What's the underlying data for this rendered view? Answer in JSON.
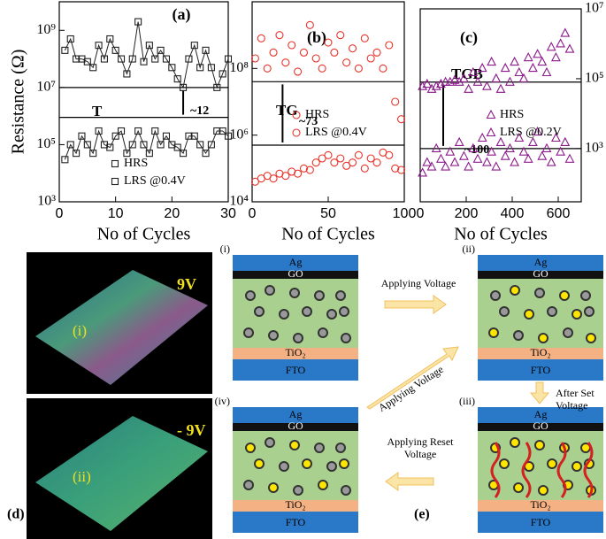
{
  "chart_data": [
    {
      "type": "scatter",
      "label": "(a)",
      "y_label": "Resistance (Ω)",
      "x_label": "No of Cycles",
      "log_y": true,
      "xlim": [
        0,
        30
      ],
      "xticks": [
        0,
        10,
        20,
        30
      ],
      "ylim": [
        1000,
        10000000000
      ],
      "yticks": [
        {
          "value": 1000,
          "label": "10³"
        },
        {
          "value": 100000,
          "label": "10⁵"
        },
        {
          "value": 10000000,
          "label": "10⁷"
        },
        {
          "value": 1000000000,
          "label": "10⁹"
        }
      ],
      "reference_lines": [
        10000000,
        900000
      ],
      "annotations": [
        "T",
        "~12"
      ],
      "x": [
        1,
        2,
        3,
        4,
        5,
        6,
        7,
        8,
        9,
        10,
        11,
        12,
        13,
        14,
        15,
        16,
        17,
        18,
        19,
        20,
        21,
        22,
        23,
        24,
        25,
        26,
        27,
        28,
        29,
        30
      ],
      "series": [
        {
          "name": "HRS",
          "color": "#222222",
          "marker": "square",
          "values": [
            200000000,
            500000000,
            100000000,
            100000000,
            80000000,
            50000000,
            300000000,
            100000000,
            500000000,
            200000000,
            100000000,
            30000000,
            100000000,
            2000000000,
            80000000,
            300000000,
            100000000,
            200000000,
            100000000,
            50000000,
            20000000,
            10000000,
            100000000,
            300000000,
            50000000,
            200000000,
            50000000,
            10000000,
            30000000,
            100000000
          ]
        },
        {
          "name": "LRS @0.4V",
          "color": "#222222",
          "marker": "square",
          "values": [
            30000,
            100000,
            50000,
            200000,
            100000,
            50000,
            300000,
            100000,
            80000,
            200000,
            300000,
            50000,
            100000,
            300000,
            100000,
            50000,
            300000,
            100000,
            200000,
            100000,
            80000,
            50000,
            200000,
            200000,
            100000,
            50000,
            100000,
            300000,
            300000,
            200000
          ]
        }
      ]
    },
    {
      "type": "scatter",
      "label": "(b)",
      "x_label": "No of Cycles",
      "log_y": true,
      "xlim": [
        0,
        100
      ],
      "xticks": [
        0,
        50,
        100
      ],
      "ylim": [
        10000,
        10000000000
      ],
      "yticks": [
        {
          "value": 10000,
          "label": "10⁴"
        },
        {
          "value": 1000000,
          "label": "10⁶"
        },
        {
          "value": 100000000,
          "label": "10⁸"
        }
      ],
      "reference_lines": [
        40000000,
        500000
      ],
      "annotations": [
        "TG",
        "~73"
      ],
      "x": [
        2,
        6,
        10,
        14,
        18,
        22,
        26,
        30,
        34,
        38,
        42,
        46,
        50,
        54,
        58,
        62,
        66,
        70,
        74,
        78,
        82,
        86,
        90,
        94,
        98
      ],
      "series": [
        {
          "name": "HRS",
          "color": "#e8332a",
          "marker": "circle",
          "values": [
            200000000,
            800000000,
            100000000,
            300000000,
            1000000000,
            150000000,
            500000000,
            80000000,
            300000000,
            2000000000,
            200000000,
            100000000,
            600000000,
            300000000,
            1000000000,
            150000000,
            400000000,
            100000000,
            800000000,
            200000000,
            300000000,
            100000000,
            500000000,
            10000000,
            3000000
          ]
        },
        {
          "name": "LRS @0.4V",
          "color": "#e8332a",
          "marker": "circle",
          "values": [
            40000,
            50000,
            60000,
            50000,
            70000,
            60000,
            80000,
            70000,
            100000,
            90000,
            150000,
            200000,
            250000,
            150000,
            200000,
            120000,
            150000,
            250000,
            100000,
            200000,
            150000,
            300000,
            250000,
            100000,
            90000
          ]
        }
      ]
    },
    {
      "type": "scatter",
      "label": "(c)",
      "x_label": "No of Cycles",
      "log_y": true,
      "xlim": [
        0,
        700
      ],
      "xticks": [
        0,
        200,
        400,
        600
      ],
      "ylim": [
        30,
        10000000
      ],
      "yticks": [
        {
          "value": 1000,
          "label": "10³"
        },
        {
          "value": 100000,
          "label": "10⁵"
        },
        {
          "value": 10000000,
          "label": "10⁷"
        }
      ],
      "reference_lines": [
        80000,
        1000
      ],
      "annotations": [
        "TGB",
        "~100"
      ],
      "x": [
        10,
        30,
        50,
        70,
        90,
        110,
        130,
        150,
        170,
        190,
        210,
        230,
        250,
        270,
        290,
        310,
        330,
        350,
        370,
        390,
        410,
        430,
        450,
        470,
        490,
        510,
        530,
        550,
        570,
        590,
        610,
        630,
        650
      ],
      "series": [
        {
          "name": "HRS",
          "color": "#8b1a8b",
          "marker": "triangle",
          "values": [
            60000,
            70000,
            50000,
            60000,
            70000,
            80000,
            80000,
            90000,
            80000,
            100000,
            50000,
            150000,
            80000,
            200000,
            60000,
            300000,
            100000,
            50000,
            200000,
            80000,
            300000,
            150000,
            100000,
            400000,
            200000,
            500000,
            300000,
            150000,
            800000,
            400000,
            1000000,
            2000000,
            700000
          ]
        },
        {
          "name": "LRS @0.2V",
          "color": "#8b1a8b",
          "marker": "triangle",
          "values": [
            200,
            400,
            300,
            1000,
            500,
            300,
            800,
            400,
            1500,
            600,
            300,
            1000,
            500,
            2000,
            400,
            800,
            300,
            1500,
            600,
            1000,
            400,
            2000,
            800,
            500,
            1500,
            3000,
            600,
            1000,
            400,
            2000,
            800,
            1500,
            500
          ]
        }
      ]
    }
  ],
  "afm": {
    "label": "(d)",
    "images": [
      {
        "label": "(i)",
        "voltage": "9V"
      },
      {
        "label": "(ii)",
        "voltage": "- 9V"
      }
    ]
  },
  "diagram": {
    "label": "(e)",
    "stacks": [
      {
        "label": "(i)",
        "layers": [
          "Ag",
          "GO",
          "TiO₂",
          "FTO"
        ]
      },
      {
        "label": "(ii)",
        "layers": [
          "Ag",
          "GO",
          "TiO₂",
          "FTO"
        ]
      },
      {
        "label": "(iii)",
        "layers": [
          "Ag",
          "GO",
          "TiO₂",
          "FTO"
        ]
      },
      {
        "label": "(iv)",
        "layers": [
          "Ag",
          "GO",
          "TiO₂",
          "FTO"
        ]
      }
    ],
    "arrows": [
      {
        "lines": [
          "Applying Voltage"
        ]
      },
      {
        "lines": [
          "After Set",
          "Voltage"
        ]
      },
      {
        "lines": [
          "Applying Reset",
          "Voltage"
        ]
      },
      {
        "lines": [
          "Applying Voltage"
        ]
      }
    ]
  }
}
